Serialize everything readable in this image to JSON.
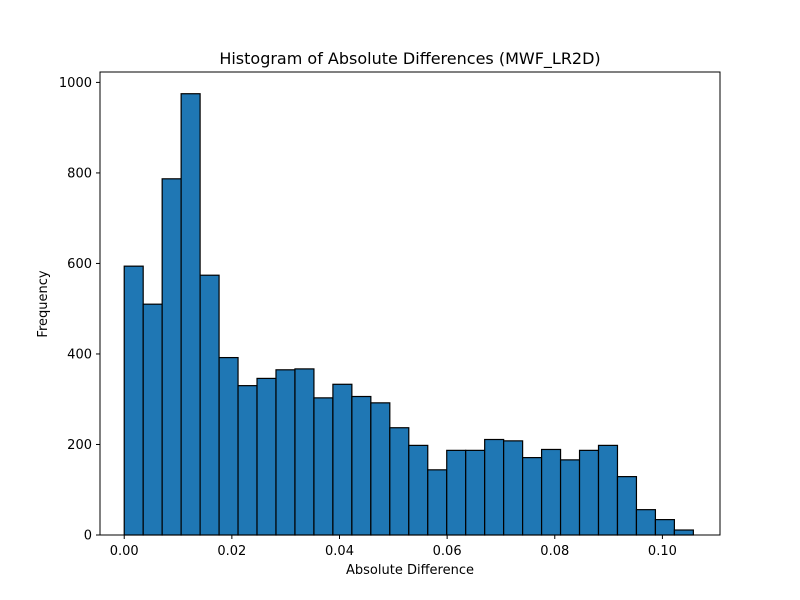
{
  "chart_data": {
    "type": "bar",
    "title": "Histogram of Absolute Differences (MWF_LR2D)",
    "xlabel": "Absolute Difference",
    "ylabel": "Frequency",
    "xlim": [
      -0.0045,
      0.1107
    ],
    "ylim": [
      0,
      1023
    ],
    "x_ticks": [
      0.0,
      0.02,
      0.04,
      0.06,
      0.08,
      0.1
    ],
    "x_tick_labels": [
      "0.00",
      "0.02",
      "0.04",
      "0.06",
      "0.08",
      "0.10"
    ],
    "y_ticks": [
      0,
      200,
      400,
      600,
      800,
      1000
    ],
    "y_tick_labels": [
      "0",
      "200",
      "400",
      "600",
      "800",
      "1000"
    ],
    "bin_start": 0.0,
    "bin_width": 0.003525,
    "values": [
      594,
      510,
      787,
      975,
      574,
      392,
      330,
      346,
      365,
      367,
      303,
      333,
      306,
      292,
      237,
      198,
      144,
      187,
      187,
      211,
      208,
      171,
      189,
      166,
      187,
      198,
      129,
      56,
      34,
      11
    ],
    "grid": false,
    "legend": "none",
    "bar_color": "#1f77b4",
    "edge_color": "#000000"
  }
}
